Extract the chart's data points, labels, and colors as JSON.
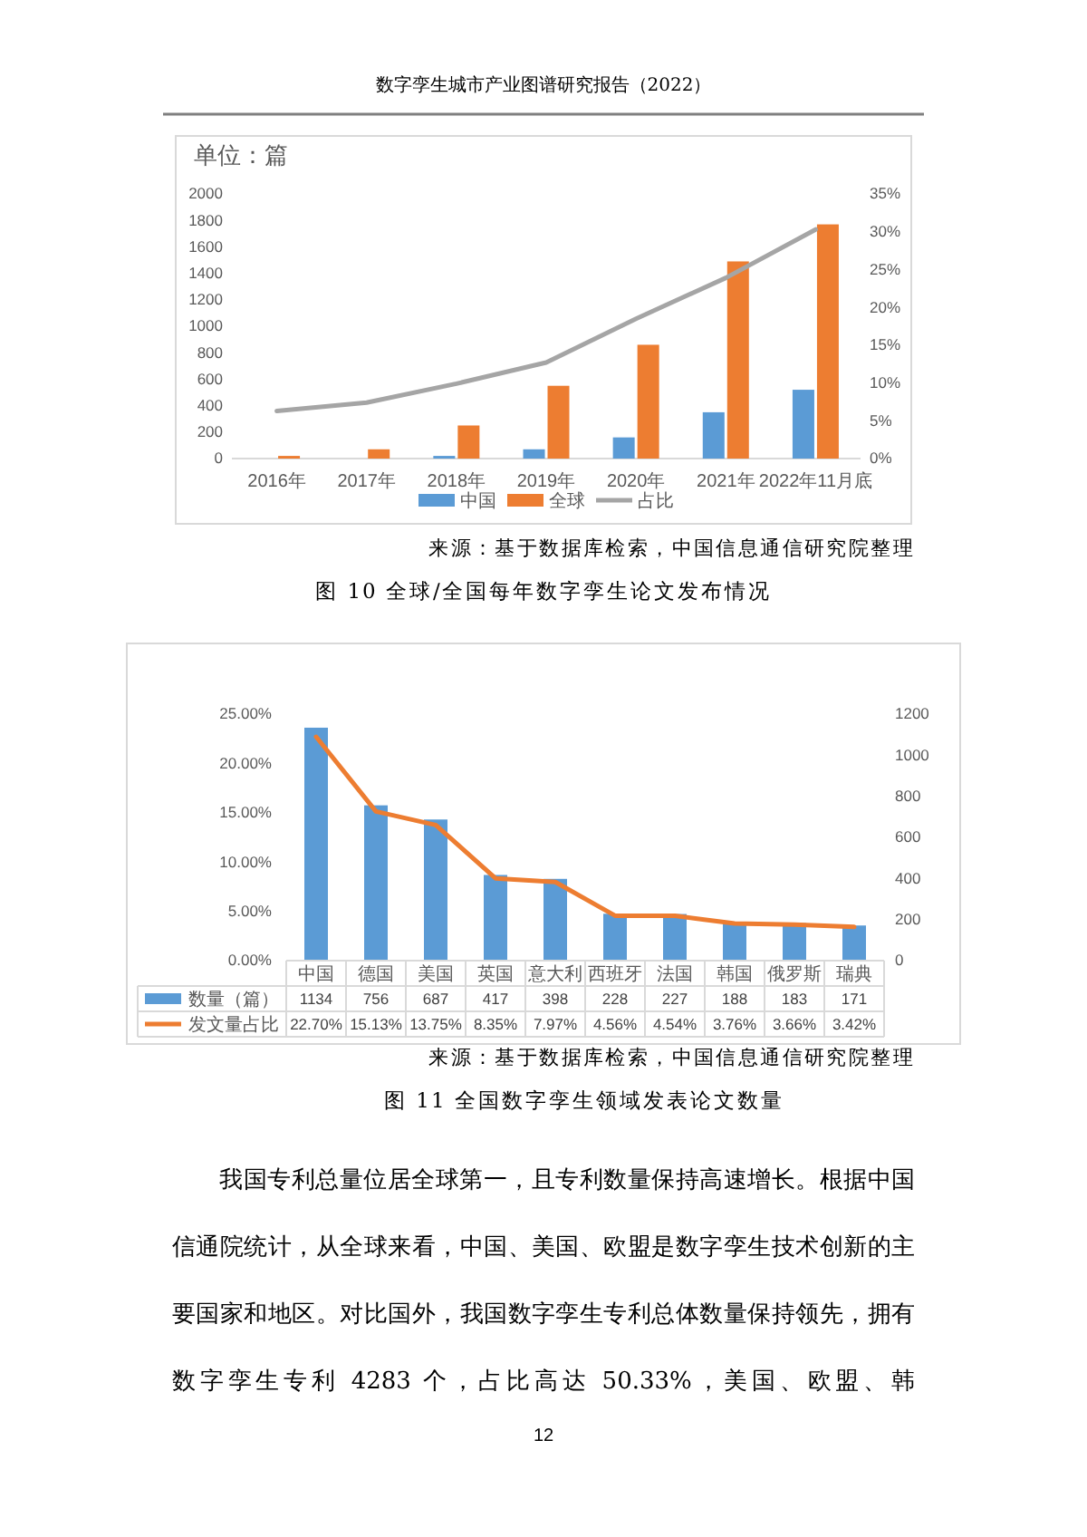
{
  "chart_data": [
    {
      "type": "bar",
      "title": "图 10 全球/全国每年数字孪生论文发布情况",
      "ylabel": "单位：篇",
      "annotations": [
        "数字孪生城市产业图谱研究报告（2022）",
        "来源：基于数据库检索，中国信息通信研究院整理"
      ],
      "categories": [
        "2016年",
        "2017年",
        "2018年",
        "2019年",
        "2020年",
        "2021年",
        "2022年11月底"
      ],
      "series": [
        {
          "name": "中国",
          "color": "#5b9bd5",
          "values": [
            0,
            0,
            20,
            70,
            160,
            350,
            520
          ]
        },
        {
          "name": "全球",
          "color": "#ed7d31",
          "values": [
            20,
            70,
            250,
            550,
            860,
            1490,
            1770
          ]
        },
        {
          "name": "占比",
          "type": "line",
          "axis": "y2",
          "color": "#a5a5a5",
          "values": [
            6.3,
            7.4,
            9.9,
            12.7,
            18.5,
            23.9,
            30.3
          ]
        }
      ],
      "ylim": [
        0,
        2000
      ],
      "yticks": [
        0,
        200,
        400,
        600,
        800,
        1000,
        1200,
        1400,
        1600,
        1800,
        2000
      ],
      "y2lim": [
        0,
        35
      ],
      "y2ticks": [
        {
          "value": 0,
          "label": "0%"
        },
        {
          "value": 5,
          "label": "5%"
        },
        {
          "value": 10,
          "label": "10%"
        },
        {
          "value": 15,
          "label": "15%"
        },
        {
          "value": 20,
          "label": "20%"
        },
        {
          "value": 25,
          "label": "25%"
        },
        {
          "value": 30,
          "label": "30%"
        },
        {
          "value": 35,
          "label": "35%"
        }
      ],
      "legend": "bottom"
    },
    {
      "type": "bar",
      "title": "图 11 全国数字孪生领域发表论文数量",
      "annotations": [
        "来源：基于数据库检索，中国信息通信研究院整理",
        "我国专利总量位居全球第一，且专利数量保持高速增长。根据中国信通院统计，从全球来看，中国、美国、欧盟是数字孪生技术创新的主要国家和地区。对比国外，我国数字孪生专利总体数量保持领先，拥有数字孪生专利 4283 个，占比高达 50.33%，美国、欧盟、韩",
        "12"
      ],
      "categories": [
        "中国",
        "德国",
        "美国",
        "英国",
        "意大利",
        "西班牙",
        "法国",
        "韩国",
        "俄罗斯",
        "瑞典"
      ],
      "series": [
        {
          "name": "数量（篇）",
          "color": "#5b9bd5",
          "axis": "y2",
          "values": [
            1134,
            756,
            687,
            417,
            398,
            228,
            227,
            188,
            183,
            171
          ],
          "value_labels": [
            "1134",
            "756",
            "687",
            "417",
            "398",
            "228",
            "227",
            "188",
            "183",
            "171"
          ]
        },
        {
          "name": "发文量占比",
          "type": "line",
          "color": "#ed7d31",
          "values": [
            22.7,
            15.13,
            13.75,
            8.35,
            7.97,
            4.56,
            4.54,
            3.76,
            3.66,
            3.42
          ],
          "value_labels": [
            "22.70%",
            "15.13%",
            "13.75%",
            "8.35%",
            "7.97%",
            "4.56%",
            "4.54%",
            "3.76%",
            "3.66%",
            "3.42%"
          ]
        }
      ],
      "ylim": [
        0,
        25
      ],
      "yticks": [
        {
          "value": 0,
          "label": "0.00%"
        },
        {
          "value": 5,
          "label": "5.00%"
        },
        {
          "value": 10,
          "label": "10.00%"
        },
        {
          "value": 15,
          "label": "15.00%"
        },
        {
          "value": 20,
          "label": "20.00%"
        },
        {
          "value": 25,
          "label": "25.00%"
        }
      ],
      "y2lim": [
        0,
        1200
      ],
      "y2ticks": [
        0,
        200,
        400,
        600,
        800,
        1000,
        1200
      ],
      "legend": "bottom"
    }
  ]
}
